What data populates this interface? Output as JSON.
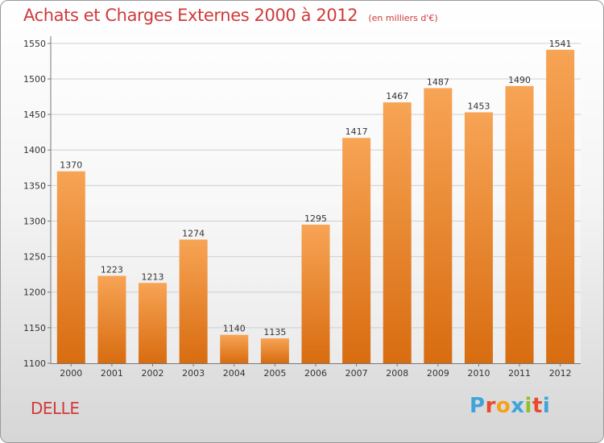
{
  "header": {
    "title": "Achats et Charges Externes 2000 à 2012",
    "subtitle": "(en milliers d'€)"
  },
  "footer": {
    "commune": "DELLE",
    "logo": "Proxiti"
  },
  "colors": {
    "title": "#d03a3a",
    "bar_top": "#f7a455",
    "bar_bottom": "#d86c10",
    "logo_letters": [
      "#3fa4dc",
      "#e84a2c",
      "#f5a11a",
      "#3fa4dc",
      "#8fbf2a",
      "#e84a2c",
      "#3fa4dc"
    ]
  },
  "chart_data": {
    "type": "bar",
    "categories": [
      "2000",
      "2001",
      "2002",
      "2003",
      "2004",
      "2005",
      "2006",
      "2007",
      "2008",
      "2009",
      "2010",
      "2011",
      "2012"
    ],
    "values": [
      1370,
      1223,
      1213,
      1274,
      1140,
      1135,
      1295,
      1417,
      1467,
      1487,
      1453,
      1490,
      1541
    ],
    "data_labels": [
      "1370",
      "1223",
      "1213",
      "1274",
      "1140",
      "1135",
      "1295",
      "1417",
      "1467",
      "1487",
      "1453",
      "1490",
      "1541"
    ],
    "yticks": [
      "1100",
      "1150",
      "1200",
      "1250",
      "1300",
      "1350",
      "1400",
      "1450",
      "1500",
      "1550"
    ],
    "ylim": [
      1100,
      1560
    ],
    "grid": true,
    "title": "Achats et Charges Externes 2000 à 2012",
    "xlabel": "",
    "ylabel": ""
  }
}
